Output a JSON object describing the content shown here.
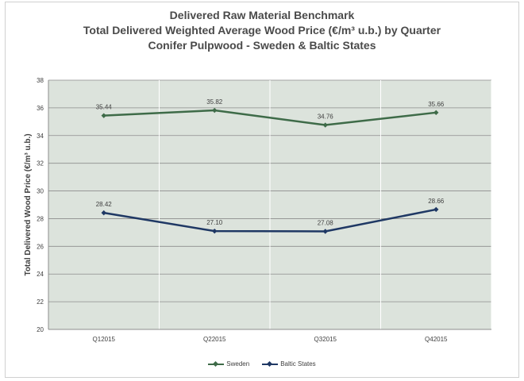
{
  "title_lines": [
    "Delivered Raw Material Benchmark",
    "Total Delivered Weighted Average Wood Price (€/m³ u.b.) by Quarter",
    "Conifer Pulpwood - Sweden & Baltic States"
  ],
  "chart_data": {
    "type": "line",
    "title": "Delivered Raw Material Benchmark / Total Delivered Weighted Average Wood Price (€/m³ u.b.) by Quarter / Conifer Pulpwood - Sweden & Baltic States",
    "xlabel": "",
    "ylabel": "Total Delivered Wood  Price (€/m³ u.b.)",
    "categories": [
      "Q12015",
      "Q22015",
      "Q32015",
      "Q42015"
    ],
    "ylim": [
      20,
      38
    ],
    "yticks": [
      20,
      22,
      24,
      26,
      28,
      30,
      32,
      34,
      36,
      38
    ],
    "grid": true,
    "legend_position": "bottom",
    "plot_background": "#dce3dc",
    "series": [
      {
        "name": "Sweden",
        "values": [
          35.44,
          35.82,
          34.76,
          35.66
        ],
        "labels": [
          "35.44",
          "35.82",
          "34.76",
          "35.66"
        ],
        "color": "#3e6b48",
        "marker": "diamond"
      },
      {
        "name": "Baltic States",
        "values": [
          28.42,
          27.1,
          27.08,
          28.66
        ],
        "labels": [
          "28.42",
          "27.10",
          "27.08",
          "28.66"
        ],
        "color": "#1f3864",
        "marker": "diamond"
      }
    ]
  }
}
